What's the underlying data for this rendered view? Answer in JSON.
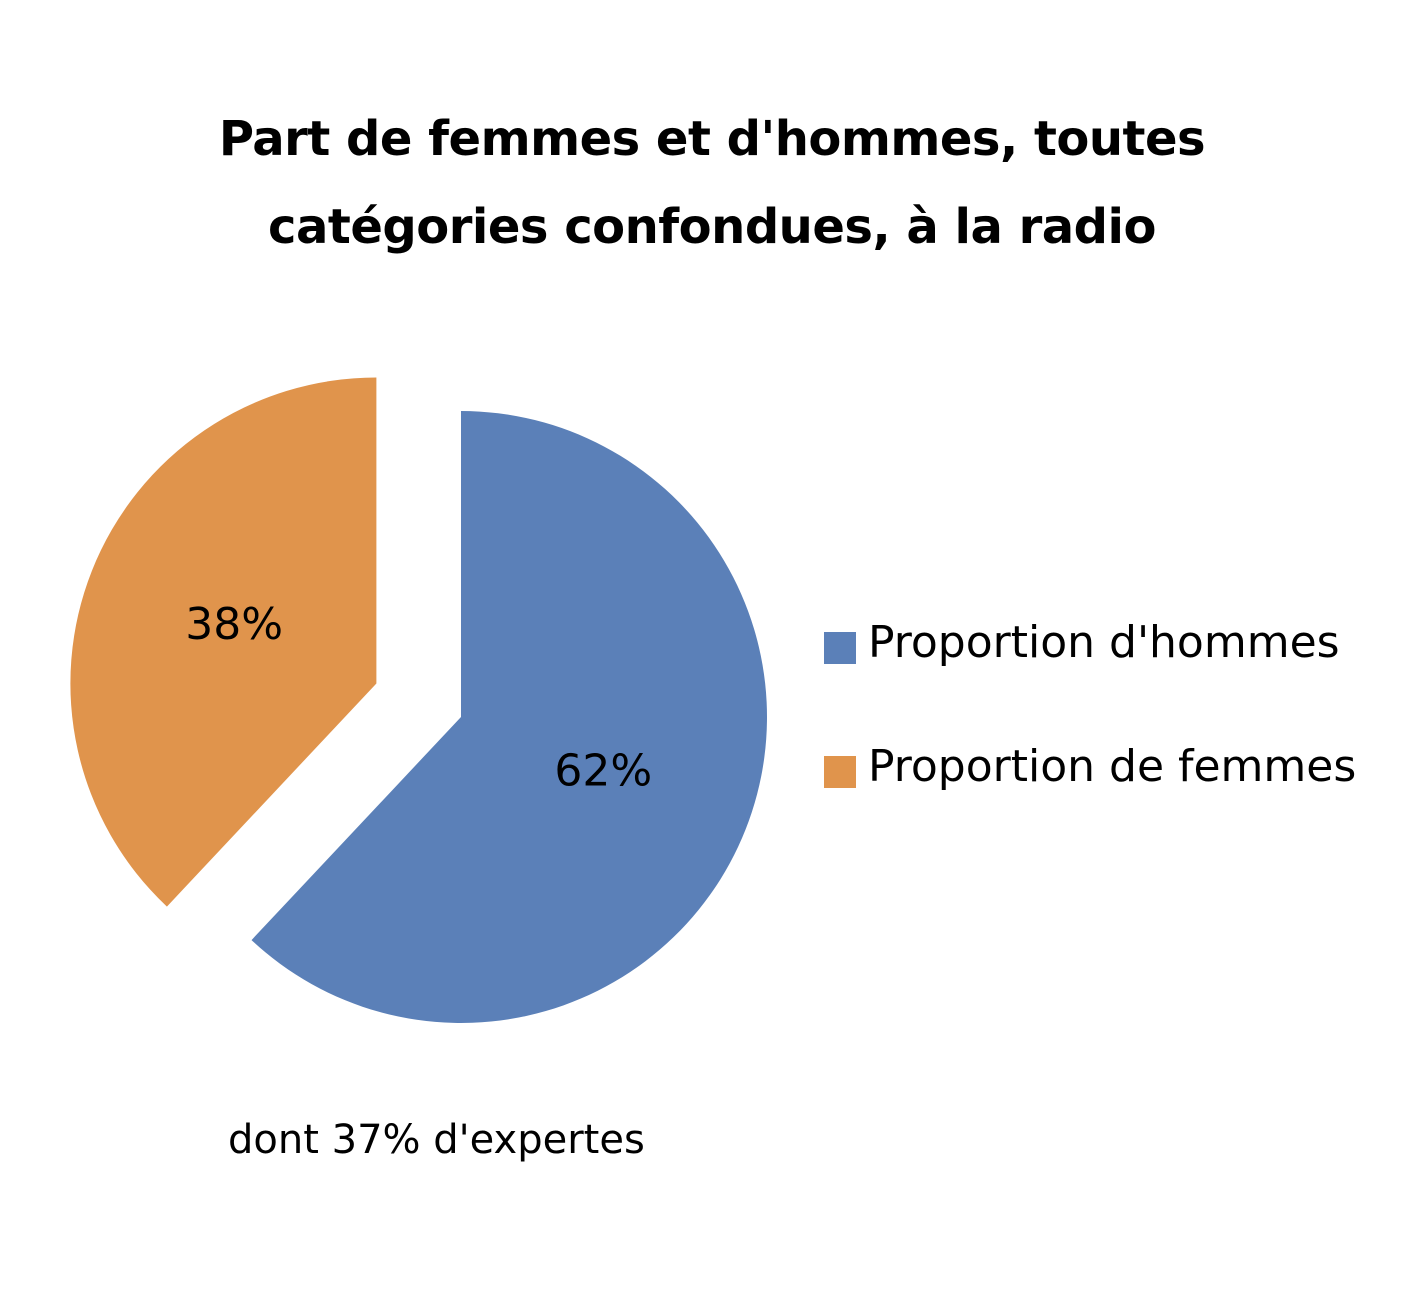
{
  "chart_data": {
    "type": "pie",
    "title_lines": [
      "Part de femmes et d'hommes, toutes",
      "catégories confondues, à la radio"
    ],
    "slices": [
      {
        "name": "Proportion d'hommes",
        "value": 62,
        "label": "62%",
        "color": "#5b80b8",
        "exploded": false
      },
      {
        "name": "Proportion de femmes",
        "value": 38,
        "label": "38%",
        "color": "#e0944c",
        "exploded": true
      }
    ],
    "legend_position": "right",
    "annotation": "dont 37% d'expertes"
  }
}
